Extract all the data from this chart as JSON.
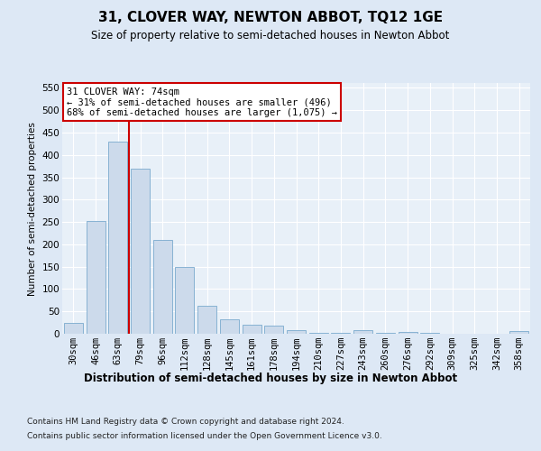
{
  "title": "31, CLOVER WAY, NEWTON ABBOT, TQ12 1GE",
  "subtitle": "Size of property relative to semi-detached houses in Newton Abbot",
  "xlabel": "Distribution of semi-detached houses by size in Newton Abbot",
  "ylabel": "Number of semi-detached properties",
  "categories": [
    "30sqm",
    "46sqm",
    "63sqm",
    "79sqm",
    "96sqm",
    "112sqm",
    "128sqm",
    "145sqm",
    "161sqm",
    "178sqm",
    "194sqm",
    "210sqm",
    "227sqm",
    "243sqm",
    "260sqm",
    "276sqm",
    "292sqm",
    "309sqm",
    "325sqm",
    "342sqm",
    "358sqm"
  ],
  "values": [
    25,
    253,
    430,
    370,
    210,
    150,
    63,
    33,
    20,
    18,
    8,
    2,
    2,
    8,
    2,
    4,
    2,
    1,
    1,
    1,
    7
  ],
  "bar_color": "#ccdaeb",
  "bar_edge_color": "#7aaace",
  "vline_color": "#cc0000",
  "vline_x": 2.5,
  "annotation_text": "31 CLOVER WAY: 74sqm\n← 31% of semi-detached houses are smaller (496)\n68% of semi-detached houses are larger (1,075) →",
  "annotation_box_color": "white",
  "annotation_box_edge_color": "#cc0000",
  "ylim": [
    0,
    560
  ],
  "yticks": [
    0,
    50,
    100,
    150,
    200,
    250,
    300,
    350,
    400,
    450,
    500,
    550
  ],
  "footer_line1": "Contains HM Land Registry data © Crown copyright and database right 2024.",
  "footer_line2": "Contains public sector information licensed under the Open Government Licence v3.0.",
  "bg_color": "#dde8f5",
  "plot_bg_color": "#e8f0f8",
  "grid_color": "#ffffff",
  "title_fontsize": 11,
  "subtitle_fontsize": 8.5,
  "xlabel_fontsize": 8.5,
  "ylabel_fontsize": 7.5,
  "tick_fontsize": 7.5,
  "annotation_fontsize": 7.5,
  "footer_fontsize": 6.5
}
